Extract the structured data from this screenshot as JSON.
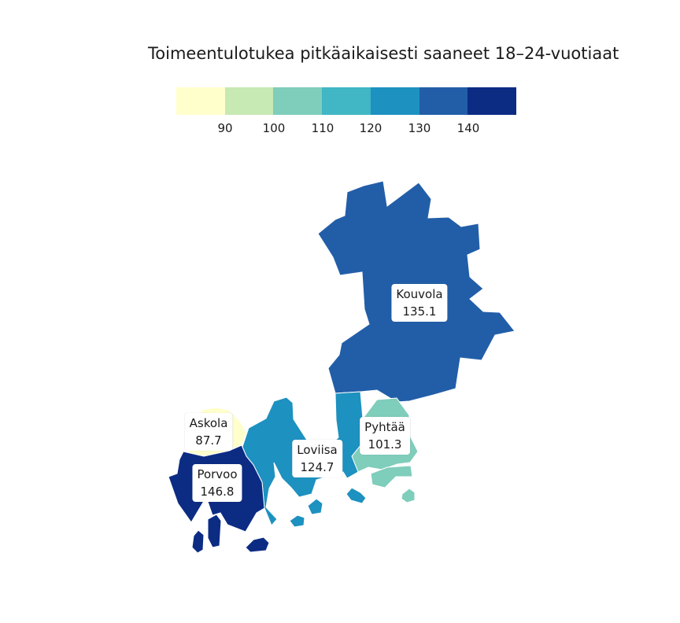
{
  "title": "Toimeentulotukea pitkäaikaisesti saaneet 18–24-vuotiaat",
  "legend": {
    "colors": [
      "#ffffcc",
      "#c7e9b4",
      "#7fcdbb",
      "#41b6c4",
      "#1d91c0",
      "#225ea8",
      "#0c2c84"
    ],
    "ticks": [
      "90",
      "100",
      "110",
      "120",
      "130",
      "140"
    ]
  },
  "regions": [
    {
      "name": "Kouvola",
      "value": "135.1",
      "color": "#225ea8"
    },
    {
      "name": "Pyhtää",
      "value": "101.3",
      "color": "#7fcdbb"
    },
    {
      "name": "Loviisa",
      "value": "124.7",
      "color": "#1d91c0"
    },
    {
      "name": "Askola",
      "value": "87.7",
      "color": "#ffffcc"
    },
    {
      "name": "Porvoo",
      "value": "146.8",
      "color": "#0c2c84"
    }
  ]
}
